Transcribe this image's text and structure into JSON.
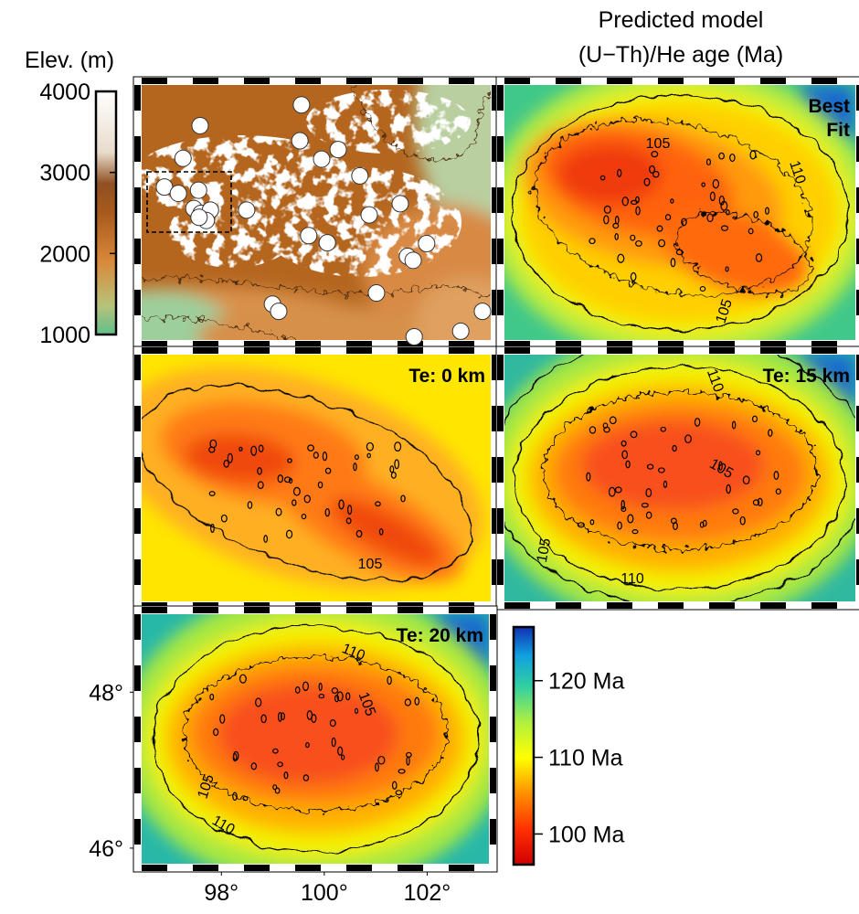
{
  "title_lines": [
    "Predicted model",
    "(U−Th)/He age (Ma)"
  ],
  "elevation_bar": {
    "label": "Elev. (m)",
    "lim": [
      1000,
      4000
    ],
    "ticks": [
      1000,
      2000,
      3000,
      4000
    ]
  },
  "age_bar": {
    "lim": [
      96,
      127
    ],
    "ticks": [
      {
        "value": 100,
        "label": "100 Ma"
      },
      {
        "value": 110,
        "label": "110 Ma"
      },
      {
        "value": 120,
        "label": "120 Ma"
      }
    ]
  },
  "map": {
    "xlim": [
      96.45,
      103.2
    ],
    "ylim": [
      45.8,
      49.0
    ],
    "xticks": [
      {
        "value": 98,
        "label": "98°"
      },
      {
        "value": 100,
        "label": "100°"
      },
      {
        "value": 102,
        "label": "102°"
      }
    ],
    "yticks": [
      {
        "value": 46,
        "label": "46°"
      },
      {
        "value": 48,
        "label": "48°"
      }
    ]
  },
  "samples": {
    "lon": [
      99.54,
      97.58,
      99.51,
      100.25,
      99.93,
      97.25,
      100.67,
      96.89,
      97.16,
      97.55,
      97.46,
      97.6,
      97.78,
      97.7,
      97.56,
      98.48,
      100.85,
      101.45,
      99.68,
      100.04,
      101.59,
      101.7,
      101.96,
      100.99,
      98.98,
      99.1,
      101.72,
      102.62,
      103.04
    ],
    "lat": [
      48.75,
      48.49,
      48.3,
      48.19,
      48.07,
      48.08,
      47.86,
      47.72,
      47.64,
      47.68,
      47.45,
      47.39,
      47.43,
      47.3,
      47.34,
      47.43,
      47.37,
      47.51,
      47.11,
      47.02,
      46.85,
      46.8,
      47.01,
      46.39,
      46.25,
      46.16,
      45.84,
      45.91,
      46.16
    ]
  },
  "panels": [
    {
      "label_lines": [
        "Best",
        "Fit"
      ],
      "contour_labels": [
        "105",
        "110",
        "105"
      ]
    },
    {
      "label_lines": [
        "Te: 0 km"
      ],
      "contour_labels": [
        "105"
      ]
    },
    {
      "label_lines": [
        "Te: 15 km"
      ],
      "contour_labels": [
        "110",
        "105",
        "105",
        "110"
      ]
    },
    {
      "label_lines": [
        "Te: 20 km"
      ],
      "contour_labels": [
        "110",
        "105",
        "105",
        "110"
      ]
    }
  ]
}
